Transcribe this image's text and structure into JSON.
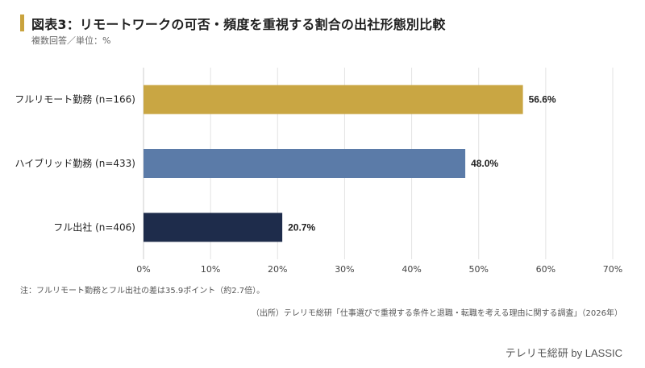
{
  "header": {
    "title": "図表3：リモートワークの可否・頻度を重視する割合の出社形態別比較",
    "subtitle": "複数回答／単位：%",
    "accent_color": "#C9A33E"
  },
  "chart_data": {
    "type": "bar",
    "orientation": "horizontal",
    "categories": [
      "フルリモート勤務 (n=166)",
      "ハイブリッド勤務 (n=433)",
      "フル出社 (n=406)"
    ],
    "values": [
      56.6,
      48.0,
      20.7
    ],
    "value_labels": [
      "56.6%",
      "48.0%",
      "20.7%"
    ],
    "colors": [
      "#C9A643",
      "#5B7BA8",
      "#1E2C4B"
    ],
    "xlim": [
      0,
      70
    ],
    "xticks": [
      "0%",
      "10%",
      "20%",
      "30%",
      "40%",
      "50%",
      "60%",
      "70%"
    ],
    "grid": true
  },
  "footer": {
    "note": "注：フルリモート勤務とフル出社の差は35.9ポイント（約2.7倍）。",
    "source": "（出所）テレリモ総研「仕事選びで重視する条件と退職・転職を考える理由に関する調査」（2026年）",
    "brand": "テレリモ総研 by LASSIC"
  }
}
